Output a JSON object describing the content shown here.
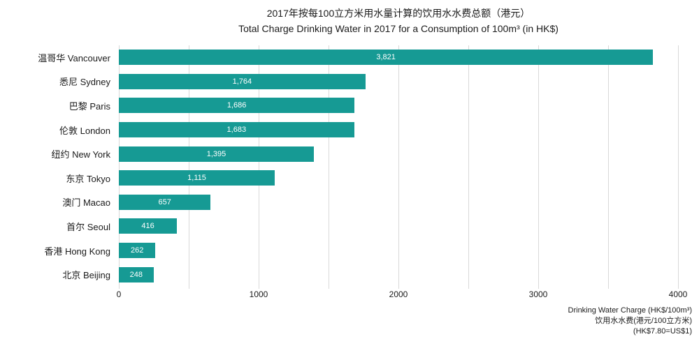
{
  "title": {
    "zh": "2017年按每100立方米用水量计算的饮用水水费总额（港元）",
    "en": "Total Charge Drinking Water in 2017 for a Consumption of 100m³ (in HK$)"
  },
  "footer": {
    "line1": "Drinking Water Charge (HK$/100m³)",
    "line2": "饮用水水费(港元/100立方米)",
    "line3": "(HK$7.80=US$1)"
  },
  "colors": {
    "bar": "#169a94",
    "grid": "#d9d9d9",
    "text": "#1a1a1a",
    "value_label": "#ffffff"
  },
  "chart_data": {
    "type": "bar",
    "orientation": "horizontal",
    "title": "2017年按每100立方米用水量计算的饮用水水费总额（港元） / Total Charge Drinking Water in 2017 for a Consumption of 100m³ (in HK$)",
    "categories": [
      "温哥华 Vancouver",
      "悉尼 Sydney",
      "巴黎 Paris",
      "伦敦 London",
      "纽约 New York",
      "东京 Tokyo",
      "澳门 Macao",
      "首尔 Seoul",
      "香港 Hong Kong",
      "北京 Beijing"
    ],
    "values": [
      3821,
      1764,
      1686,
      1683,
      1395,
      1115,
      657,
      416,
      262,
      248
    ],
    "value_labels": [
      "3,821",
      "1,764",
      "1,686",
      "1,683",
      "1,395",
      "1,115",
      "657",
      "416",
      "262",
      "248"
    ],
    "xlabel": "Drinking Water Charge (HK$/100m³) 饮用水水费(港元/100立方米) (HK$7.80=US$1)",
    "ylabel": "",
    "xlim": [
      0,
      4000
    ],
    "x_ticks": [
      0,
      1000,
      2000,
      3000,
      4000
    ],
    "gridline_interval": 500,
    "grid": true,
    "legend": false
  }
}
